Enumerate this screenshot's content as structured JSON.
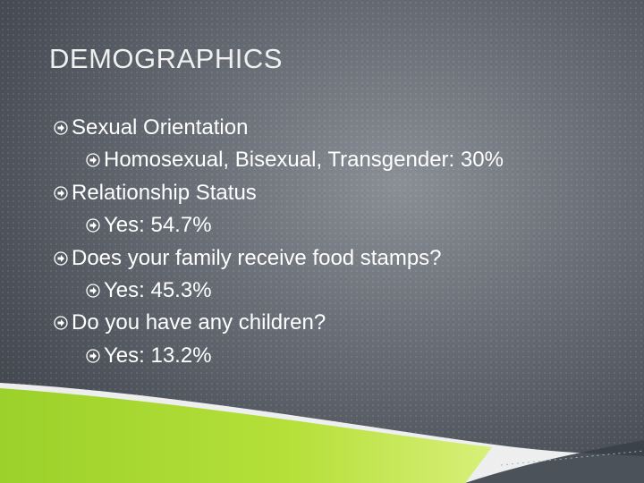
{
  "title": "DEMOGRAPHICS",
  "items": [
    {
      "text": "Sexual Orientation",
      "sub": [
        "Homosexual, Bisexual, Transgender: 30%"
      ]
    },
    {
      "text": "Relationship Status",
      "sub": [
        "Yes: 54.7%"
      ]
    },
    {
      "text": "Does your family receive food stamps?",
      "sub": [
        "Yes: 45.3%"
      ]
    },
    {
      "text": "Do you have any children?",
      "sub": [
        "Yes: 13.2%"
      ]
    }
  ]
}
